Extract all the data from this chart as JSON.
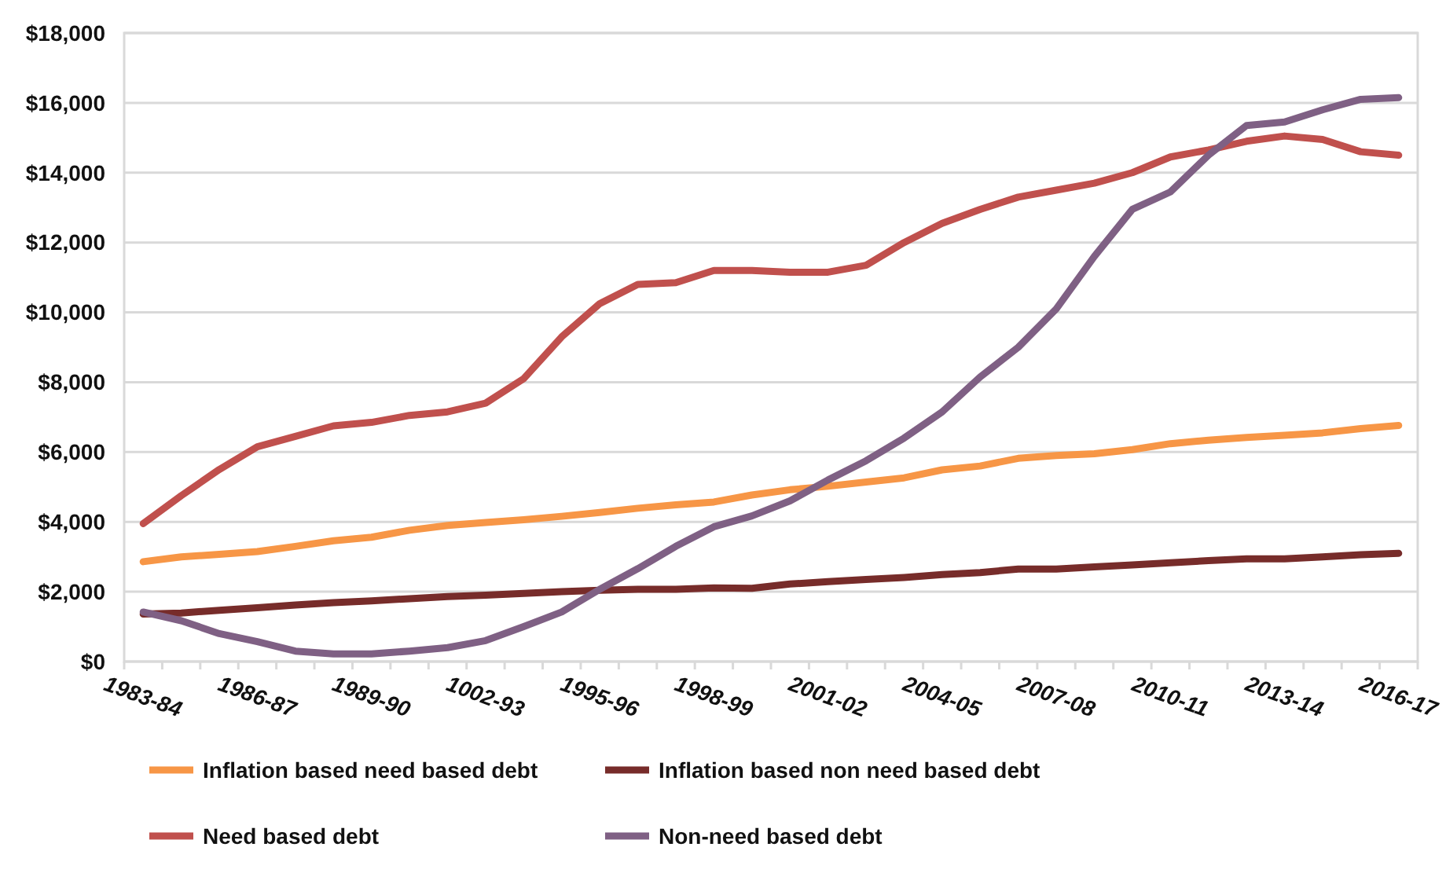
{
  "chart_data": {
    "type": "line",
    "categories": [
      "1983-84",
      null,
      null,
      "1986-87",
      null,
      null,
      "1989-90",
      null,
      null,
      "1002-93",
      null,
      null,
      "1995-96",
      null,
      null,
      "1998-99",
      null,
      null,
      "2001-02",
      null,
      null,
      "2004-05",
      null,
      null,
      "2007-08",
      null,
      null,
      "2010-11",
      null,
      null,
      "2013-14",
      null,
      null,
      "2016-17"
    ],
    "series": [
      {
        "name": "Inflation based need based debt",
        "color": "#f79646",
        "values": [
          2860,
          3000,
          3070,
          3150,
          3300,
          3460,
          3560,
          3760,
          3900,
          3980,
          4060,
          4160,
          4270,
          4390,
          4490,
          4570,
          4770,
          4920,
          5020,
          5140,
          5260,
          5490,
          5600,
          5820,
          5900,
          5950,
          6070,
          6240,
          6340,
          6420,
          6480,
          6550,
          6670,
          6760
        ]
      },
      {
        "name": "Inflation based non need based debt",
        "color": "#772c2a",
        "values": [
          1360,
          1390,
          1470,
          1540,
          1620,
          1690,
          1740,
          1800,
          1860,
          1900,
          1950,
          2000,
          2040,
          2070,
          2070,
          2110,
          2100,
          2220,
          2290,
          2350,
          2410,
          2490,
          2550,
          2650,
          2650,
          2710,
          2770,
          2830,
          2890,
          2940,
          2940,
          3000,
          3060,
          3100
        ]
      },
      {
        "name": "Need based debt",
        "color": "#c0504d",
        "values": [
          3950,
          4750,
          5500,
          6150,
          6450,
          6750,
          6850,
          7050,
          7150,
          7400,
          8100,
          9300,
          10250,
          10800,
          10850,
          11200,
          11200,
          11150,
          11150,
          11350,
          12000,
          12550,
          12950,
          13300,
          13500,
          13700,
          14000,
          14450,
          14650,
          14900,
          15050,
          14950,
          14600,
          14500
        ]
      },
      {
        "name": "Non-need based debt",
        "color": "#7f6084",
        "values": [
          1420,
          1170,
          800,
          570,
          300,
          220,
          220,
          300,
          400,
          600,
          1000,
          1420,
          2070,
          2660,
          3300,
          3860,
          4170,
          4600,
          5200,
          5750,
          6400,
          7150,
          8150,
          9000,
          10100,
          11600,
          12950,
          13450,
          14500,
          15350,
          15450,
          15800,
          16100,
          16150
        ]
      }
    ],
    "ylim": [
      0,
      18000
    ],
    "yticks": [
      {
        "value": 0,
        "label": "$0"
      },
      {
        "value": 2000,
        "label": "$2,000"
      },
      {
        "value": 4000,
        "label": "$4,000"
      },
      {
        "value": 6000,
        "label": "$6,000"
      },
      {
        "value": 8000,
        "label": "$8,000"
      },
      {
        "value": 10000,
        "label": "$10,000"
      },
      {
        "value": 12000,
        "label": "$12,000"
      },
      {
        "value": 14000,
        "label": "$14,000"
      },
      {
        "value": 16000,
        "label": "$16,000"
      },
      {
        "value": 18000,
        "label": "$18,000"
      }
    ],
    "grid": "y",
    "legend": "bottom",
    "marker": "none",
    "line_style": "solid"
  }
}
